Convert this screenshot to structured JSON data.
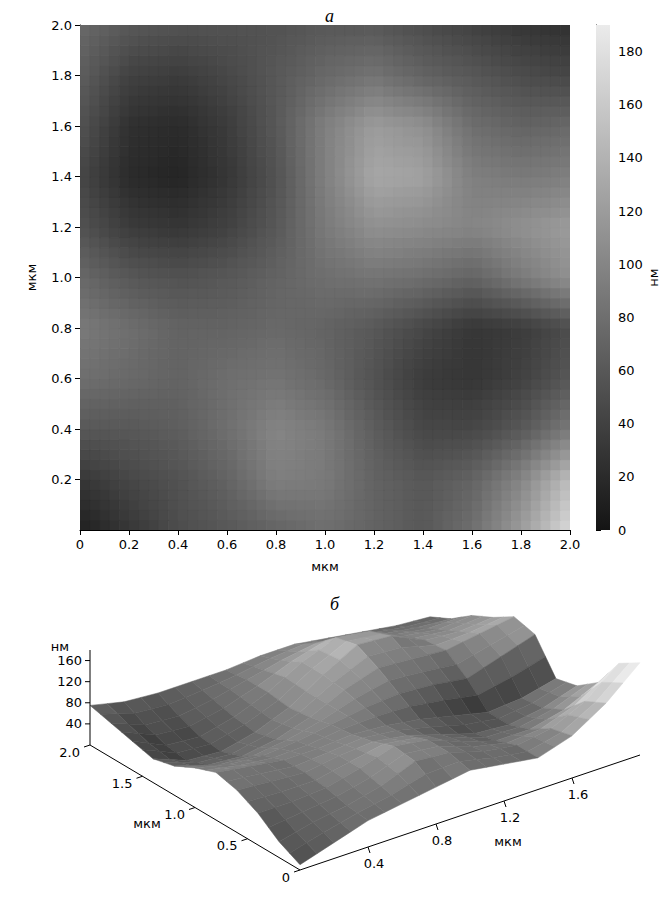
{
  "chart_data": [
    {
      "type": "heatmap",
      "title": "а",
      "x": [
        0,
        0.2,
        0.4,
        0.6,
        0.8,
        1.0,
        1.2,
        1.4,
        1.6,
        1.8,
        2.0
      ],
      "y": [
        0,
        0.2,
        0.4,
        0.6,
        0.8,
        1.0,
        1.2,
        1.4,
        1.6,
        1.8,
        2.0
      ],
      "values": [
        [
          10,
          30,
          50,
          60,
          70,
          80,
          70,
          60,
          80,
          120,
          175
        ],
        [
          30,
          45,
          55,
          70,
          95,
          90,
          70,
          60,
          70,
          100,
          150
        ],
        [
          60,
          60,
          65,
          80,
          100,
          90,
          65,
          45,
          45,
          60,
          90
        ],
        [
          80,
          75,
          70,
          80,
          85,
          75,
          55,
          35,
          30,
          40,
          60
        ],
        [
          90,
          80,
          70,
          70,
          75,
          70,
          60,
          45,
          30,
          35,
          50
        ],
        [
          75,
          60,
          55,
          60,
          70,
          80,
          85,
          80,
          70,
          90,
          110
        ],
        [
          55,
          35,
          30,
          40,
          60,
          90,
          110,
          105,
          100,
          110,
          120
        ],
        [
          45,
          20,
          15,
          30,
          55,
          95,
          130,
          125,
          95,
          90,
          95
        ],
        [
          55,
          25,
          20,
          35,
          60,
          95,
          120,
          110,
          80,
          70,
          75
        ],
        [
          65,
          40,
          35,
          45,
          60,
          75,
          85,
          70,
          60,
          50,
          45
        ],
        [
          75,
          60,
          55,
          55,
          55,
          60,
          60,
          50,
          40,
          30,
          25
        ]
      ],
      "xlim": [
        0,
        2.0
      ],
      "ylim": [
        0,
        2.0
      ],
      "xticks": [
        0,
        0.2,
        0.4,
        0.6,
        0.8,
        {
          "value": 1,
          "label": "1.0"
        },
        1.2,
        1.4,
        1.6,
        1.8,
        {
          "value": 2,
          "label": "2.0"
        }
      ],
      "yticks": [
        0.2,
        0.4,
        0.6,
        0.8,
        {
          "value": 1,
          "label": "1.0"
        },
        1.2,
        1.4,
        1.6,
        1.8,
        {
          "value": 2,
          "label": "2.0"
        }
      ],
      "xlabel": "мкм",
      "ylabel": "мкм",
      "colorbar": {
        "range": [
          0,
          190
        ],
        "ticks": [
          0,
          20,
          40,
          60,
          80,
          100,
          120,
          140,
          160,
          180
        ],
        "label": "нм"
      }
    },
    {
      "type": "surface",
      "title": "б",
      "xlim": [
        0,
        2.0
      ],
      "ylim": [
        0,
        2.0
      ],
      "zlim": [
        0,
        180
      ],
      "xticks": [
        0.4,
        0.8,
        1.2,
        1.6
      ],
      "yticks": [
        0,
        0.5,
        {
          "value": 1,
          "label": "1.0"
        },
        1.5,
        {
          "value": 2,
          "label": "2.0"
        }
      ],
      "zticks": [
        40,
        80,
        120,
        160
      ],
      "xlabel": "мкм",
      "ylabel": "мкм",
      "zlabel": "нм"
    }
  ]
}
